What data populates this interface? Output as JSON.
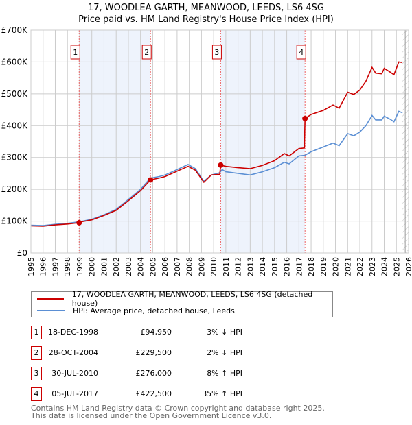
{
  "chart_data": {
    "type": "line",
    "title": "17, WOODLEA GARTH, MEANWOOD, LEEDS, LS6 4SG",
    "subtitle": "Price paid vs. HM Land Registry's House Price Index (HPI)",
    "xlim": [
      1995,
      2026
    ],
    "ylim": [
      0,
      700000
    ],
    "y_ticks": [
      0,
      100000,
      200000,
      300000,
      400000,
      500000,
      600000,
      700000
    ],
    "y_tick_labels": [
      "£0",
      "£100K",
      "£200K",
      "£300K",
      "£400K",
      "£500K",
      "£600K",
      "£700K"
    ],
    "x_ticks": [
      "1995",
      "1996",
      "1997",
      "1998",
      "1999",
      "2000",
      "2001",
      "2002",
      "2003",
      "2004",
      "2005",
      "2006",
      "2007",
      "2008",
      "2009",
      "2010",
      "2011",
      "2012",
      "2013",
      "2014",
      "2015",
      "2016",
      "2017",
      "2018",
      "2019",
      "2020",
      "2021",
      "2022",
      "2023",
      "2024",
      "2025",
      "2026"
    ],
    "grid": true,
    "forecast_hatch_start": 2025.5,
    "colors": {
      "price": "#cc0000",
      "hpi": "#5b8fd4",
      "shade": "#eef3fc",
      "marker": "#cc0000"
    },
    "series": [
      {
        "name": "17, WOODLEA GARTH, MEANWOOD, LEEDS, LS6 4SG (detached house)",
        "x": [
          1995,
          1996,
          1997,
          1998,
          1998.96,
          1999,
          2000,
          2001,
          2002,
          2003,
          2004,
          2004.82,
          2005.5,
          2006,
          2007,
          2007.9,
          2008.5,
          2009.2,
          2009.8,
          2010.5,
          2010.58,
          2011,
          2012,
          2013,
          2014,
          2015,
          2015.8,
          2016.2,
          2017,
          2017.45,
          2017.5,
          2018,
          2019,
          2019.8,
          2020.3,
          2021,
          2021.5,
          2022,
          2022.5,
          2023,
          2023.3,
          2023.8,
          2024,
          2024.5,
          2024.8,
          2025.2,
          2025.5
        ],
        "y": [
          85000,
          84000,
          88000,
          91000,
          94950,
          97000,
          104000,
          118000,
          134000,
          164000,
          196000,
          229500,
          235000,
          240000,
          257000,
          272000,
          260000,
          222000,
          245000,
          247000,
          276000,
          272000,
          268000,
          265000,
          275000,
          290000,
          312000,
          305000,
          328000,
          330000,
          422500,
          435000,
          448000,
          465000,
          455000,
          505000,
          498000,
          512000,
          540000,
          583000,
          565000,
          563000,
          580000,
          568000,
          560000,
          600000,
          598000
        ]
      },
      {
        "name": "HPI: Average price, detached house, Leeds",
        "x": [
          1995,
          1996,
          1997,
          1998,
          1999,
          2000,
          2001,
          2002,
          2003,
          2004,
          2004.8,
          2005.5,
          2006,
          2007,
          2007.9,
          2008.5,
          2009.2,
          2009.8,
          2010.5,
          2010.7,
          2011,
          2012,
          2013,
          2014,
          2015,
          2015.8,
          2016.2,
          2017,
          2017.5,
          2018,
          2019,
          2019.8,
          2020.3,
          2021,
          2021.5,
          2022,
          2022.5,
          2023,
          2023.3,
          2023.8,
          2024,
          2024.5,
          2024.8,
          2025.2,
          2025.5
        ],
        "y": [
          87000,
          86000,
          90000,
          93000,
          98000,
          106000,
          120000,
          137000,
          168000,
          200000,
          235000,
          240000,
          245000,
          262000,
          278000,
          265000,
          225000,
          245000,
          252000,
          262000,
          255000,
          250000,
          245000,
          255000,
          268000,
          285000,
          280000,
          305000,
          307000,
          318000,
          333000,
          345000,
          337000,
          375000,
          368000,
          380000,
          400000,
          432000,
          418000,
          418000,
          430000,
          420000,
          412000,
          445000,
          440000
        ]
      }
    ],
    "sales": [
      {
        "label": "1",
        "x": 1998.96,
        "y": 94950,
        "date": "18-DEC-1998",
        "price": "£94,950",
        "hpi": "3% ↓ HPI"
      },
      {
        "label": "2",
        "x": 2004.82,
        "y": 229500,
        "date": "28-OCT-2004",
        "price": "£229,500",
        "hpi": "2% ↓ HPI"
      },
      {
        "label": "3",
        "x": 2010.58,
        "y": 276000,
        "date": "30-JUL-2010",
        "price": "£276,000",
        "hpi": "8% ↑ HPI"
      },
      {
        "label": "4",
        "x": 2017.5,
        "y": 422500,
        "date": "05-JUL-2017",
        "price": "£422,500",
        "hpi": "35% ↑ HPI"
      }
    ],
    "shaded_ranges": [
      [
        1998.96,
        2004.82
      ],
      [
        2010.58,
        2017.5
      ]
    ]
  },
  "legend": {
    "price": "17, WOODLEA GARTH, MEANWOOD, LEEDS, LS6 4SG (detached house)",
    "hpi": "HPI: Average price, detached house, Leeds"
  },
  "footer": {
    "line1": "Contains HM Land Registry data © Crown copyright and database right 2025.",
    "line2": "This data is licensed under the Open Government Licence v3.0."
  }
}
